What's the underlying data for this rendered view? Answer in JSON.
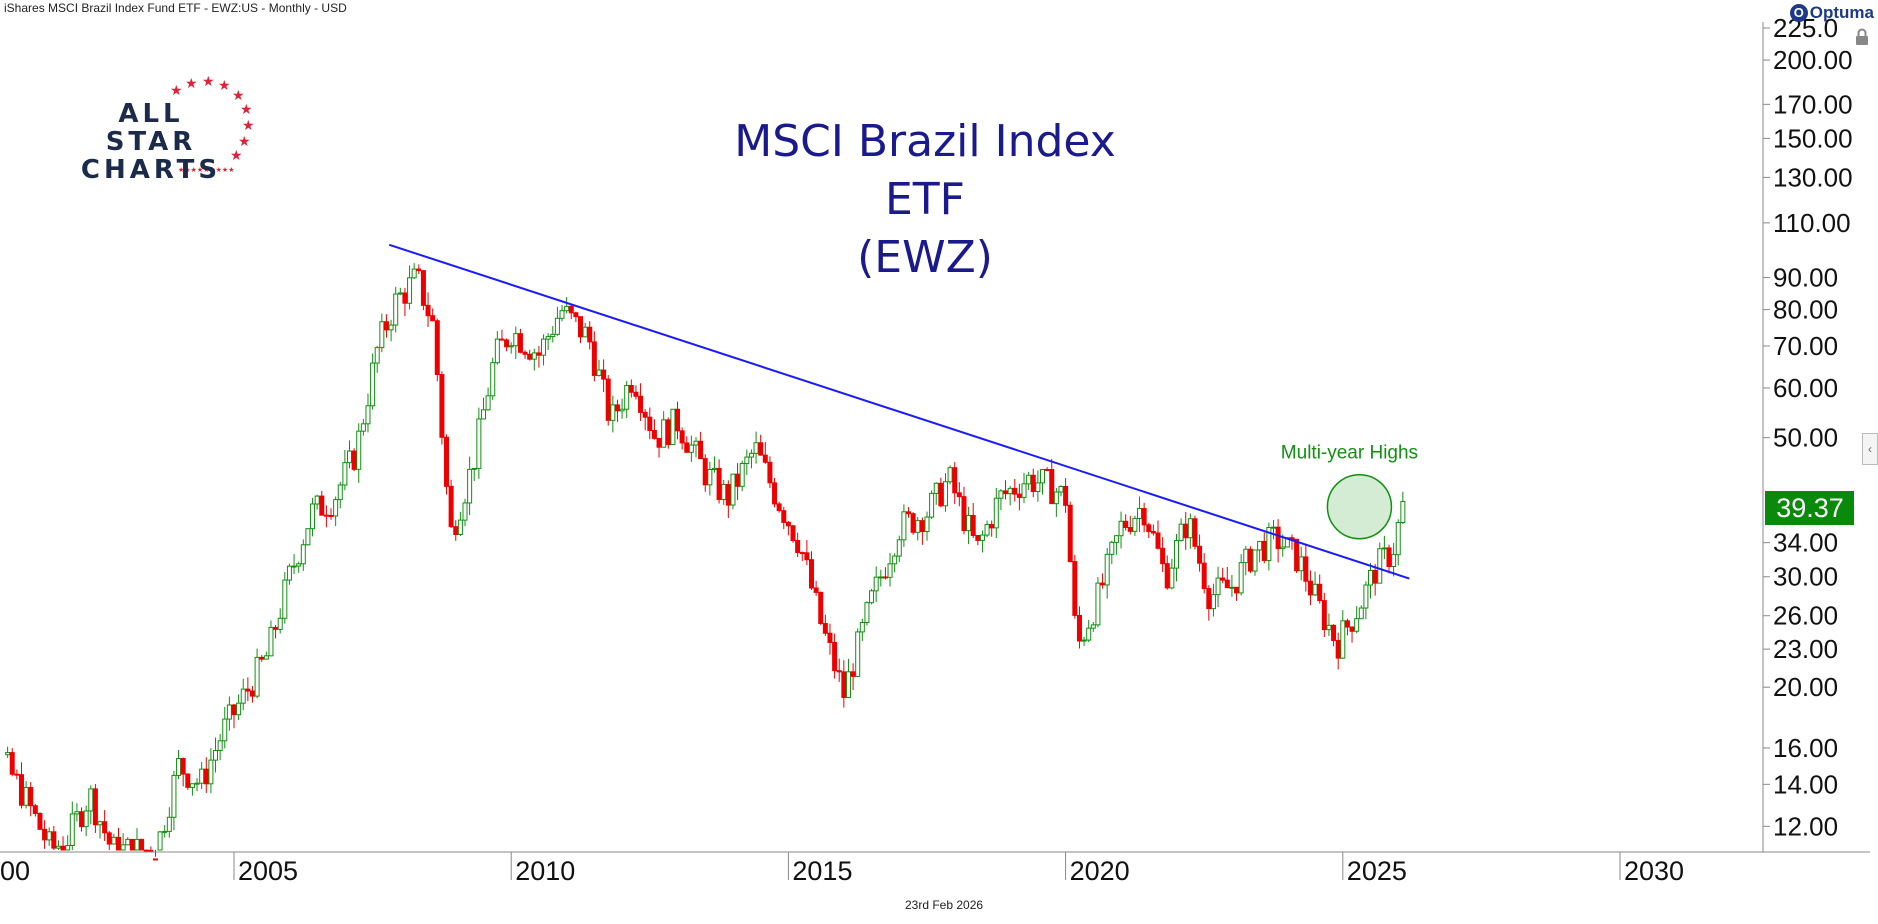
{
  "header": {
    "instrument": "iShares MSCI Brazil Index Fund ETF - EWZ:US - Monthly - USD",
    "brand": "Optuma"
  },
  "logo": {
    "line1": "ALL STAR",
    "line2": "CHARTS"
  },
  "footer": {
    "date": "23rd Feb 2026"
  },
  "chart_data": {
    "type": "candlestick",
    "title": "MSCI Brazil Index ETF",
    "subtitle": "(EWZ)",
    "yscale": "log",
    "ylim": [
      11,
      230
    ],
    "xlim": [
      2000.0,
      2032.7
    ],
    "y_ticks": [
      "12.00",
      "14.00",
      "16.00",
      "20.00",
      "23.00",
      "26.00",
      "30.00",
      "34.00",
      "50.00",
      "60.00",
      "70.00",
      "80.00",
      "90.00",
      "110.00",
      "130.00",
      "150.00",
      "170.00",
      "200.00",
      "225.0"
    ],
    "x_ticks": [
      "00",
      "2005",
      "2010",
      "2015",
      "2020",
      "2025",
      "2030"
    ],
    "last_price": {
      "label": "39.37",
      "value": 39.37,
      "color": "#0a8a0a"
    },
    "trendline": {
      "color": "#1a1aff",
      "x": [
        2007.8,
        2026.2
      ],
      "y": [
        101.5,
        29.8
      ]
    },
    "annotation": {
      "text": "Multi-year Highs",
      "color": "#109010",
      "x": 2025.3,
      "y": 38.8
    },
    "highlight_circle": {
      "x": 2025.3,
      "y": 38.8,
      "color": "#109010"
    },
    "candle_colors": {
      "up": "#109010",
      "down": "#ee0000"
    },
    "grid": false,
    "price_path": [
      [
        2000.0,
        15.5
      ],
      [
        2000.3,
        18.5
      ],
      [
        2000.7,
        16.0
      ],
      [
        2001.2,
        13.5
      ],
      [
        2001.7,
        11.0
      ],
      [
        2002.0,
        11.5
      ],
      [
        2002.4,
        13.5
      ],
      [
        2002.8,
        11.0
      ],
      [
        2003.6,
        11.0
      ],
      [
        2004.0,
        15.0
      ],
      [
        2004.4,
        14.0
      ],
      [
        2004.8,
        17.0
      ],
      [
        2005.2,
        19.5
      ],
      [
        2005.6,
        22.5
      ],
      [
        2006.0,
        30.0
      ],
      [
        2006.4,
        38.0
      ],
      [
        2006.8,
        40.0
      ],
      [
        2007.2,
        47.5
      ],
      [
        2007.6,
        70.0
      ],
      [
        2007.9,
        82.0
      ],
      [
        2008.3,
        90.0
      ],
      [
        2008.6,
        75.0
      ],
      [
        2008.9,
        35.0
      ],
      [
        2009.3,
        45.0
      ],
      [
        2009.7,
        67.0
      ],
      [
        2010.0,
        74.0
      ],
      [
        2010.5,
        68.0
      ],
      [
        2010.9,
        80.0
      ],
      [
        2011.4,
        72.0
      ],
      [
        2011.8,
        53.0
      ],
      [
        2012.2,
        63.0
      ],
      [
        2012.6,
        50.0
      ],
      [
        2013.0,
        53.0
      ],
      [
        2013.5,
        44.0
      ],
      [
        2013.9,
        40.0
      ],
      [
        2014.4,
        48.0
      ],
      [
        2014.8,
        40.0
      ],
      [
        2015.2,
        34.0
      ],
      [
        2015.6,
        25.0
      ],
      [
        2016.0,
        19.5
      ],
      [
        2016.5,
        27.5
      ],
      [
        2017.0,
        36.0
      ],
      [
        2017.5,
        38.0
      ],
      [
        2017.9,
        43.0
      ],
      [
        2018.4,
        33.0
      ],
      [
        2018.8,
        40.0
      ],
      [
        2019.3,
        43.0
      ],
      [
        2019.7,
        42.0
      ],
      [
        2020.0,
        40.0
      ],
      [
        2020.2,
        23.0
      ],
      [
        2020.6,
        28.0
      ],
      [
        2021.0,
        36.0
      ],
      [
        2021.4,
        39.0
      ],
      [
        2021.8,
        30.0
      ],
      [
        2022.2,
        37.0
      ],
      [
        2022.6,
        28.0
      ],
      [
        2023.0,
        29.0
      ],
      [
        2023.4,
        33.0
      ],
      [
        2023.8,
        34.5
      ],
      [
        2024.2,
        32.0
      ],
      [
        2024.6,
        26.5
      ],
      [
        2024.9,
        23.5
      ],
      [
        2025.3,
        27.0
      ],
      [
        2025.6,
        31.0
      ],
      [
        2025.9,
        33.0
      ],
      [
        2026.1,
        39.37
      ]
    ]
  }
}
